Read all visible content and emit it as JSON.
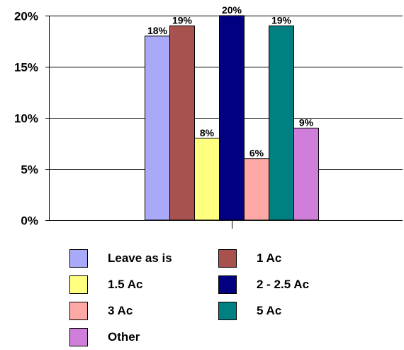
{
  "chart_data": {
    "type": "bar",
    "categories": [
      "Leave as is",
      "1 Ac",
      "1.5 Ac",
      "2 - 2.5 Ac",
      "3 Ac",
      "5 Ac",
      "Other"
    ],
    "values": [
      18,
      19,
      8,
      20,
      6,
      19,
      9
    ],
    "data_labels": [
      "18%",
      "19%",
      "8%",
      "20%",
      "6%",
      "19%",
      "9%"
    ],
    "colors": [
      "#a9a9f9",
      "#a8524f",
      "#ffff80",
      "#000080",
      "#ffa9a6",
      "#008080",
      "#cf7fd9"
    ],
    "ylim": [
      0,
      20
    ],
    "yticks": [
      0,
      5,
      10,
      15,
      20
    ],
    "ytick_labels": [
      "0%",
      "5%",
      "10%",
      "15%",
      "20%"
    ],
    "grid": true,
    "legend_position": "bottom",
    "title": "",
    "xlabel": "",
    "ylabel": ""
  }
}
